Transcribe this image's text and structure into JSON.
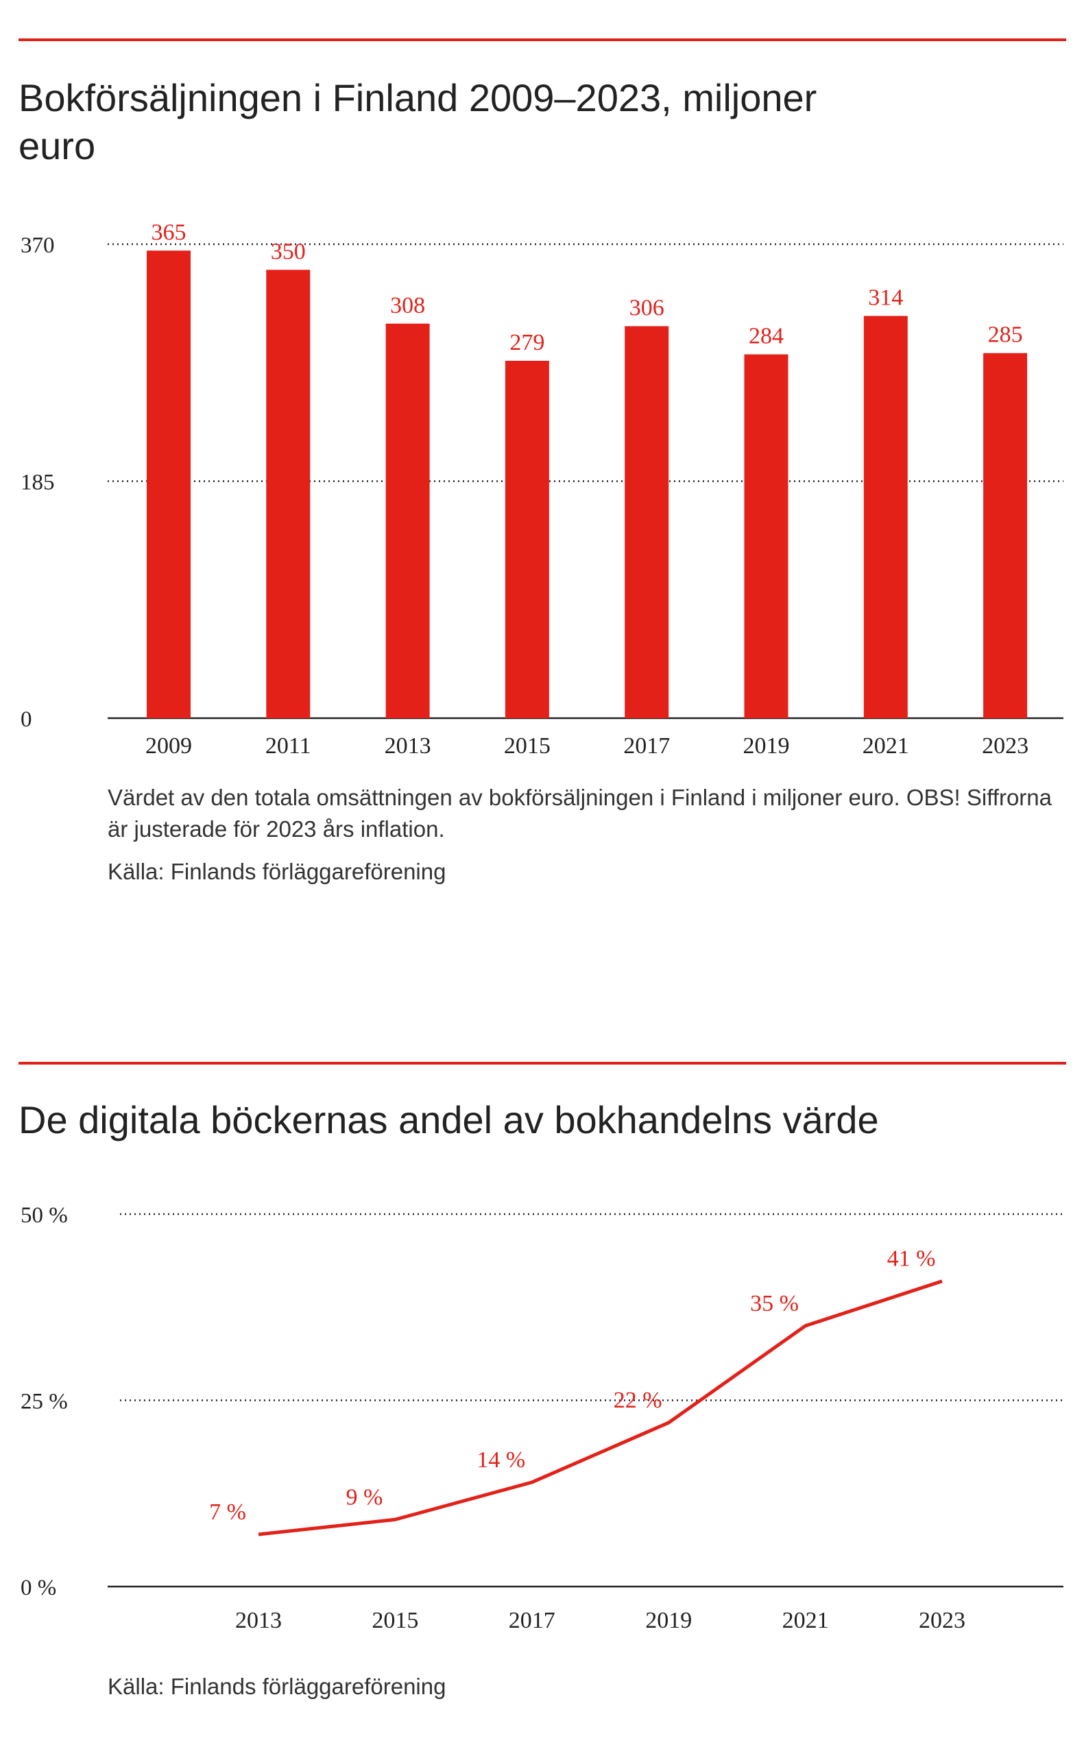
{
  "chart_data": [
    {
      "type": "bar",
      "title": "Bokförsäljningen i Finland 2009–2023, miljoner euro",
      "categories": [
        "2009",
        "2011",
        "2013",
        "2015",
        "2017",
        "2019",
        "2021",
        "2023"
      ],
      "values": [
        365,
        350,
        308,
        279,
        306,
        284,
        314,
        285
      ],
      "ylim": [
        0,
        370
      ],
      "yticks": [
        "0",
        "185",
        "370"
      ],
      "ytick_values": [
        0,
        185,
        370
      ],
      "grid": true,
      "note": "Värdet av den totala omsättningen av bokförsäljningen i Finland i miljoner euro. OBS! Siffrorna är justerade för 2023 års inflation.",
      "source": "Källa: Finlands förläggareförening",
      "colors": {
        "bar": "#e32119",
        "label": "#e32119",
        "accent": "#e32119"
      }
    },
    {
      "type": "line",
      "title": "De digitala böckernas andel av bokhandelns värde",
      "categories": [
        "2013",
        "2015",
        "2017",
        "2019",
        "2021",
        "2023"
      ],
      "values": [
        7,
        9,
        14,
        22,
        35,
        41
      ],
      "value_labels": [
        "7 %",
        "9 %",
        "14 %",
        "22 %",
        "35 %",
        "41 %"
      ],
      "ylim": [
        0,
        50
      ],
      "yticks": [
        "0 %",
        "25 %",
        "50 %"
      ],
      "ytick_values": [
        0,
        25,
        50
      ],
      "grid": true,
      "source": "Källa: Finlands förläggareförening",
      "colors": {
        "line": "#e32119",
        "label": "#e32119"
      }
    }
  ]
}
